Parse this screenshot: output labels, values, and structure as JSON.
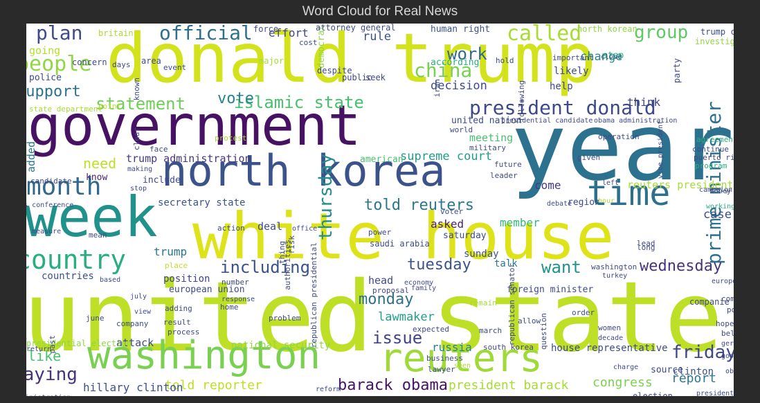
{
  "title": "Word Cloud for Real News",
  "chart_data": {
    "type": "wordcloud",
    "title": "Word Cloud for Real News",
    "words": [
      {
        "text": "donald trump",
        "weight": 100,
        "color": "#d2e21b"
      },
      {
        "text": "united state",
        "weight": 98,
        "color": "#bddf26"
      },
      {
        "text": "white house",
        "weight": 85,
        "color": "#dde318"
      },
      {
        "text": "year",
        "weight": 82,
        "color": "#2c728e"
      },
      {
        "text": "government",
        "weight": 75,
        "color": "#471164"
      },
      {
        "text": "week",
        "weight": 70,
        "color": "#21918c"
      },
      {
        "text": "north korea",
        "weight": 66,
        "color": "#3b528b"
      },
      {
        "text": "washington",
        "weight": 60,
        "color": "#7ad151"
      },
      {
        "text": "reuters",
        "weight": 58,
        "color": "#a0da39"
      },
      {
        "text": "time",
        "weight": 52,
        "color": "#2d708e"
      },
      {
        "text": "month",
        "weight": 40,
        "color": "#31688e"
      },
      {
        "text": "country",
        "weight": 40,
        "color": "#29af7f"
      },
      {
        "text": "people",
        "weight": 36,
        "color": "#90d743"
      },
      {
        "text": "plan",
        "weight": 35,
        "color": "#3e4a89"
      },
      {
        "text": "official",
        "weight": 34,
        "color": "#2e6f8e"
      },
      {
        "text": "called",
        "weight": 34,
        "color": "#a8db34"
      },
      {
        "text": "china",
        "weight": 34,
        "color": "#7ad151"
      },
      {
        "text": "group",
        "weight": 33,
        "color": "#5ec962"
      },
      {
        "text": "president donald",
        "weight": 32,
        "color": "#3e4989"
      },
      {
        "text": "prime minister",
        "weight": 32,
        "color": "#2d718e"
      },
      {
        "text": "thursday",
        "weight": 31,
        "color": "#228d8d"
      },
      {
        "text": "including",
        "weight": 30,
        "color": "#3b528b"
      },
      {
        "text": "friday",
        "weight": 30,
        "color": "#3f4788"
      },
      {
        "text": "saying",
        "weight": 30,
        "color": "#46327e"
      },
      {
        "text": "work",
        "weight": 29,
        "color": "#31688e"
      },
      {
        "text": "issue",
        "weight": 29,
        "color": "#414487"
      },
      {
        "text": "statement",
        "weight": 28,
        "color": "#6ece58"
      },
      {
        "text": "islamic state",
        "weight": 28,
        "color": "#48c16e"
      },
      {
        "text": "support",
        "weight": 27,
        "color": "#2c728e"
      },
      {
        "text": "wednesday",
        "weight": 27,
        "color": "#46327e"
      },
      {
        "text": "tuesday",
        "weight": 27,
        "color": "#3b528b"
      },
      {
        "text": "monday",
        "weight": 27,
        "color": "#2d708e"
      },
      {
        "text": "want",
        "weight": 27,
        "color": "#1f948c"
      },
      {
        "text": "barack obama",
        "weight": 25,
        "color": "#471164"
      },
      {
        "text": "told reuters",
        "weight": 25,
        "color": "#2a788e"
      },
      {
        "text": "vote",
        "weight": 25,
        "color": "#26828e"
      },
      {
        "text": "need",
        "weight": 24,
        "color": "#bddf26"
      },
      {
        "text": "like",
        "weight": 24,
        "color": "#48c16e"
      },
      {
        "text": "president barack",
        "weight": 21,
        "color": "#a8db34"
      },
      {
        "text": "told reporter",
        "weight": 21,
        "color": "#bddf26"
      },
      {
        "text": "report",
        "weight": 20,
        "color": "#2a788e"
      },
      {
        "text": "congress",
        "weight": 20,
        "color": "#7ad151"
      },
      {
        "text": "hillary clinton",
        "weight": 19,
        "color": "#3b528b"
      },
      {
        "text": "supreme court",
        "weight": 19,
        "color": "#1f9e89"
      },
      {
        "text": "decision",
        "weight": 18,
        "color": "#3e4a89"
      },
      {
        "text": "lawmaker",
        "weight": 18,
        "color": "#1fa187"
      },
      {
        "text": "change",
        "weight": 18,
        "color": "#24868e"
      },
      {
        "text": "rule",
        "weight": 18,
        "color": "#3b528b"
      },
      {
        "text": "effort",
        "weight": 17,
        "color": "#414487"
      },
      {
        "text": "asked",
        "weight": 17,
        "color": "#482173"
      },
      {
        "text": "member",
        "weight": 17,
        "color": "#35b779"
      },
      {
        "text": "case",
        "weight": 17,
        "color": "#3e4a89"
      },
      {
        "text": "come",
        "weight": 16,
        "color": "#443983"
      },
      {
        "text": "russia",
        "weight": 16,
        "color": "#26828e"
      },
      {
        "text": "trump administration",
        "weight": 15,
        "color": "#453781"
      },
      {
        "text": "attack",
        "weight": 15,
        "color": "#3e4a89"
      },
      {
        "text": "going",
        "weight": 15,
        "color": "#b5de2b"
      },
      {
        "text": "think",
        "weight": 15,
        "color": "#3f4788"
      },
      {
        "text": "help",
        "weight": 14,
        "color": "#404588"
      },
      {
        "text": "likely",
        "weight": 14,
        "color": "#3e4a89"
      },
      {
        "text": "talk",
        "weight": 14,
        "color": "#2a788e"
      },
      {
        "text": "clinton",
        "weight": 14,
        "color": "#3b528b"
      },
      {
        "text": "countries",
        "weight": 13,
        "color": "#3b528b"
      },
      {
        "text": "trump",
        "weight": 14,
        "color": "#2a788e"
      },
      {
        "text": "deal",
        "weight": 14,
        "color": "#3e4a89"
      },
      {
        "text": "head",
        "weight": 13,
        "color": "#3e4a89"
      },
      {
        "text": "meeting",
        "weight": 13,
        "color": "#48c16e"
      },
      {
        "text": "sunday",
        "weight": 13,
        "color": "#3b528b"
      },
      {
        "text": "reuters president",
        "weight": 12,
        "color": "#a8db34"
      },
      {
        "text": "secretary state",
        "weight": 12,
        "color": "#3b528b"
      },
      {
        "text": "house representative",
        "weight": 12,
        "color": "#3e4a89"
      },
      {
        "text": "national security",
        "weight": 12,
        "color": "#90d743"
      },
      {
        "text": "position",
        "weight": 12,
        "color": "#404588"
      },
      {
        "text": "presidential election",
        "weight": 10,
        "color": "#90d743"
      },
      {
        "text": "united nation",
        "weight": 11,
        "color": "#3e4a89"
      },
      {
        "text": "human right",
        "weight": 10,
        "color": "#3b528b"
      },
      {
        "text": "according",
        "weight": 11,
        "color": "#29af7f"
      },
      {
        "text": "democrat",
        "weight": 11,
        "color": "#90d743"
      },
      {
        "text": "region",
        "weight": 11,
        "color": "#3e4a89"
      },
      {
        "text": "american",
        "weight": 10,
        "color": "#48c16e"
      },
      {
        "text": "include",
        "weight": 10,
        "color": "#3e4a89"
      },
      {
        "text": "know",
        "weight": 10,
        "color": "#482173"
      },
      {
        "text": "added",
        "weight": 10,
        "color": "#2a788e"
      },
      {
        "text": "source",
        "weight": 10,
        "color": "#3e4a89"
      },
      {
        "text": "foreign minister",
        "weight": 10,
        "color": "#3e4a89"
      },
      {
        "text": "european union",
        "weight": 10,
        "color": "#3e4a89"
      },
      {
        "text": "saturday",
        "weight": 10,
        "color": "#3e4a89"
      },
      {
        "text": "area",
        "weight": 10,
        "color": "#3e4a89"
      },
      {
        "text": "police",
        "weight": 9,
        "color": "#3e4a89"
      },
      {
        "text": "major",
        "weight": 9,
        "color": "#a8db34"
      },
      {
        "text": "public",
        "weight": 9,
        "color": "#3e4a89"
      },
      {
        "text": "seek",
        "weight": 9,
        "color": "#3e4a89"
      },
      {
        "text": "despite",
        "weight": 9,
        "color": "#3e4a89"
      },
      {
        "text": "step",
        "weight": 9,
        "color": "#29af7f"
      },
      {
        "text": "important",
        "weight": 8,
        "color": "#3e4a89"
      },
      {
        "text": "party",
        "weight": 8,
        "color": "#3e4a89"
      },
      {
        "text": "trump campaign",
        "weight": 8,
        "color": "#3e4a89"
      },
      {
        "text": "investigation",
        "weight": 8,
        "color": "#90d743"
      },
      {
        "text": "north korean",
        "weight": 8,
        "color": "#90d743"
      },
      {
        "text": "attorney general",
        "weight": 8,
        "color": "#3e4a89"
      },
      {
        "text": "force",
        "weight": 8,
        "color": "#3e4a89"
      },
      {
        "text": "britain",
        "weight": 8,
        "color": "#a8db34"
      },
      {
        "text": "concern",
        "weight": 8,
        "color": "#3e4a89"
      },
      {
        "text": "days",
        "weight": 8,
        "color": "#3e4a89"
      },
      {
        "text": "event",
        "weight": 8,
        "color": "#3e4a89"
      },
      {
        "text": "hold",
        "weight": 8,
        "color": "#3e4a89"
      },
      {
        "text": "state department",
        "weight": 8,
        "color": "#a8db34"
      },
      {
        "text": "point",
        "weight": 8,
        "color": "#c0df25"
      },
      {
        "text": "iran",
        "weight": 8,
        "color": "#3e4a89"
      },
      {
        "text": "presidential candidate",
        "weight": 8,
        "color": "#3e4a89"
      },
      {
        "text": "obama administration",
        "weight": 8,
        "color": "#3e4a89"
      },
      {
        "text": "world",
        "weight": 8,
        "color": "#3e4a89"
      },
      {
        "text": "military",
        "weight": 8,
        "color": "#3e4a89"
      },
      {
        "text": "operation",
        "weight": 8,
        "color": "#3e4a89"
      },
      {
        "text": "agreement",
        "weight": 8,
        "color": "#29af7f"
      },
      {
        "text": "continue",
        "weight": 8,
        "color": "#3e4a89"
      },
      {
        "text": "puerto rico",
        "weight": 8,
        "color": "#3e4a89"
      },
      {
        "text": "program",
        "weight": 8,
        "color": "#29af7f"
      },
      {
        "text": "money",
        "weight": 8,
        "color": "#3e4a89"
      },
      {
        "text": "came",
        "weight": 8,
        "color": "#3e4a89"
      },
      {
        "text": "face",
        "weight": 8,
        "color": "#3e4a89"
      },
      {
        "text": "protest",
        "weight": 8,
        "color": "#a8db34"
      },
      {
        "text": "given",
        "weight": 8,
        "color": "#3e4a89"
      },
      {
        "text": "future",
        "weight": 8,
        "color": "#3e4a89"
      },
      {
        "text": "leader",
        "weight": 8,
        "color": "#3e4a89"
      },
      {
        "text": "left",
        "weight": 8,
        "color": "#3e4a89"
      },
      {
        "text": "campaign",
        "weight": 8,
        "color": "#3e4a89"
      },
      {
        "text": "working",
        "weight": 8,
        "color": "#29af7f"
      },
      {
        "text": "candidate",
        "weight": 8,
        "color": "#3e4a89"
      },
      {
        "text": "making",
        "weight": 8,
        "color": "#3e4a89"
      },
      {
        "text": "stop",
        "weight": 8,
        "color": "#3e4a89"
      },
      {
        "text": "news conference",
        "weight": 8,
        "color": "#3e4a89"
      },
      {
        "text": "action",
        "weight": 8,
        "color": "#3e4a89"
      },
      {
        "text": "office",
        "weight": 8,
        "color": "#3e4a89"
      },
      {
        "text": "risk",
        "weight": 8,
        "color": "#3e4a89"
      },
      {
        "text": "voter",
        "weight": 8,
        "color": "#3e4a89"
      },
      {
        "text": "debate",
        "weight": 7,
        "color": "#3e4a89"
      },
      {
        "text": "hour",
        "weight": 7,
        "color": "#a8db34"
      },
      {
        "text": "lead",
        "weight": 8,
        "color": "#3e4a89"
      },
      {
        "text": "long",
        "weight": 8,
        "color": "#3e4a89"
      },
      {
        "text": "measure",
        "weight": 8,
        "color": "#3e4a89"
      },
      {
        "text": "mean",
        "weight": 8,
        "color": "#3e4a89"
      },
      {
        "text": "power",
        "weight": 8,
        "color": "#3e4a89"
      },
      {
        "text": "saudi arabia",
        "weight": 8,
        "color": "#3e4a89"
      },
      {
        "text": "place",
        "weight": 8,
        "color": "#c0df25"
      },
      {
        "text": "washington",
        "weight": 7,
        "color": "#3e4a89"
      },
      {
        "text": "turkey",
        "weight": 8,
        "color": "#3e4a89"
      },
      {
        "text": "europe",
        "weight": 7,
        "color": "#3e4a89"
      },
      {
        "text": "based",
        "weight": 7,
        "color": "#3e4a89"
      },
      {
        "text": "number",
        "weight": 8,
        "color": "#3e4a89"
      },
      {
        "text": "proposal",
        "weight": 7,
        "color": "#3e4a89"
      },
      {
        "text": "economy",
        "weight": 7,
        "color": "#3e4a89"
      },
      {
        "text": "family",
        "weight": 7,
        "color": "#3e4a89"
      },
      {
        "text": "comment",
        "weight": 8,
        "color": "#3e4a89"
      },
      {
        "text": "possible",
        "weight": 8,
        "color": "#3e4a89"
      },
      {
        "text": "political",
        "weight": 8,
        "color": "#29af7f"
      },
      {
        "text": "july",
        "weight": 8,
        "color": "#3e4a89"
      },
      {
        "text": "view",
        "weight": 7,
        "color": "#3e4a89"
      },
      {
        "text": "adding",
        "weight": 8,
        "color": "#3e4a89"
      },
      {
        "text": "response",
        "weight": 7,
        "color": "#3e4a89"
      },
      {
        "text": "home",
        "weight": 8,
        "color": "#3e4a89"
      },
      {
        "text": "remain",
        "weight": 8,
        "color": "#a8db34"
      },
      {
        "text": "companie",
        "weight": 8,
        "color": "#3e4a89"
      },
      {
        "text": "june",
        "weight": 7,
        "color": "#3e4a89"
      },
      {
        "text": "result",
        "weight": 8,
        "color": "#3e4a89"
      },
      {
        "text": "company",
        "weight": 7,
        "color": "#3e4a89"
      },
      {
        "text": "problem",
        "weight": 7,
        "color": "#3e4a89"
      },
      {
        "text": "allow",
        "weight": 8,
        "color": "#3e4a89"
      },
      {
        "text": "order",
        "weight": 8,
        "color": "#3e4a89"
      },
      {
        "text": "women",
        "weight": 7,
        "color": "#3e4a89"
      },
      {
        "text": "hope",
        "weight": 8,
        "color": "#3e4a89"
      },
      {
        "text": "believe",
        "weight": 8,
        "color": "#3e4a89"
      },
      {
        "text": "past",
        "weight": 7,
        "color": "#3e4a89"
      },
      {
        "text": "process",
        "weight": 7,
        "color": "#3e4a89"
      },
      {
        "text": "expected",
        "weight": 7,
        "color": "#3e4a89"
      },
      {
        "text": "march",
        "weight": 7,
        "color": "#3e4a89"
      },
      {
        "text": "decade",
        "weight": 7,
        "color": "#3e4a89"
      },
      {
        "text": "germany",
        "weight": 7,
        "color": "#3e4a89"
      },
      {
        "text": "return",
        "weight": 7,
        "color": "#3e4a89"
      },
      {
        "text": "south korea",
        "weight": 8,
        "color": "#3e4a89"
      },
      {
        "text": "business",
        "weight": 8,
        "color": "#3e4a89"
      },
      {
        "text": "lawyer",
        "weight": 8,
        "color": "#3e4a89"
      },
      {
        "text": "seen",
        "weight": 7,
        "color": "#a8db34"
      },
      {
        "text": "good",
        "weight": 7,
        "color": "#3e4a89"
      },
      {
        "text": "obama",
        "weight": 7,
        "color": "#3e4a89"
      },
      {
        "text": "charge",
        "weight": 7,
        "color": "#3e4a89"
      },
      {
        "text": "reform",
        "weight": 7,
        "color": "#3e4a89"
      },
      {
        "text": "administration",
        "weight": 7,
        "color": "#3e4a89"
      },
      {
        "text": "election",
        "weight": 8,
        "color": "#3e4a89"
      },
      {
        "text": "president elect",
        "weight": 7,
        "color": "#3e4a89"
      },
      {
        "text": "vice president",
        "weight": 7,
        "color": "#3e4a89"
      },
      {
        "text": "known",
        "weight": 7,
        "color": "#3e4a89"
      },
      {
        "text": "clear",
        "weight": 7,
        "color": "#3e4a89"
      },
      {
        "text": "thing",
        "weight": 7,
        "color": "#3e4a89"
      },
      {
        "text": "authorities",
        "weight": 7,
        "color": "#3e4a89"
      },
      {
        "text": "question",
        "weight": 7,
        "color": "#3e4a89"
      },
      {
        "text": "following",
        "weight": 7,
        "color": "#3e4a89"
      },
      {
        "text": "republican presidential",
        "weight": 7,
        "color": "#3e4a89"
      },
      {
        "text": "republican senator",
        "weight": 7,
        "color": "#3e4a89"
      },
      {
        "text": "close",
        "weight": 7,
        "color": "#3e4a89"
      },
      {
        "text": "cost",
        "weight": 7,
        "color": "#3e4a89"
      }
    ]
  }
}
